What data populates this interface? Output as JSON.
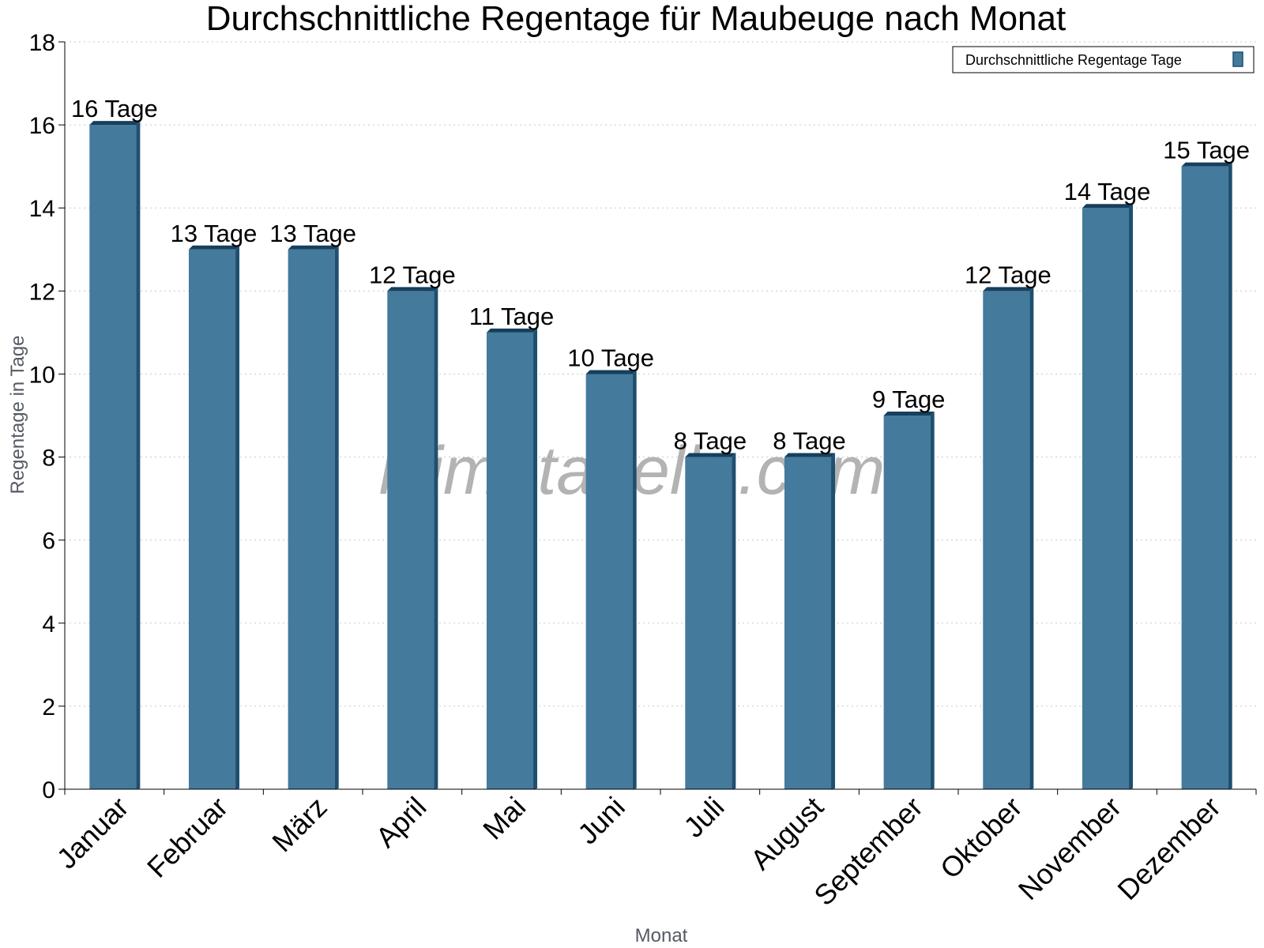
{
  "watermark": "klimatabelle.com",
  "colors": {
    "bar_face": "#447a9c",
    "bar_side": "#1f4f70",
    "bar_top": "#163f5e",
    "grid": "#c8c8c8",
    "axis": "#000000"
  },
  "legend_position": "top-right",
  "grid": true,
  "chart_data": {
    "type": "bar",
    "title": "Durchschnittliche Regentage für Maubeuge nach Monat",
    "xlabel": "Monat",
    "ylabel": "Regentage in Tage",
    "ylim": [
      0,
      18
    ],
    "yticks": [
      0,
      2,
      4,
      6,
      8,
      10,
      12,
      14,
      16,
      18
    ],
    "categories": [
      "Januar",
      "Februar",
      "März",
      "April",
      "Mai",
      "Juni",
      "Juli",
      "August",
      "September",
      "Oktober",
      "November",
      "Dezember"
    ],
    "series": [
      {
        "name": "Durchschnittliche Regentage Tage",
        "values": [
          16,
          13,
          13,
          12,
          11,
          10,
          8,
          8,
          9,
          12,
          14,
          15
        ],
        "labels": [
          "16 Tage",
          "13 Tage",
          "13 Tage",
          "12 Tage",
          "11 Tage",
          "10 Tage",
          "8 Tage",
          "8 Tage",
          "9 Tage",
          "12 Tage",
          "14 Tage",
          "15 Tage"
        ]
      }
    ]
  }
}
